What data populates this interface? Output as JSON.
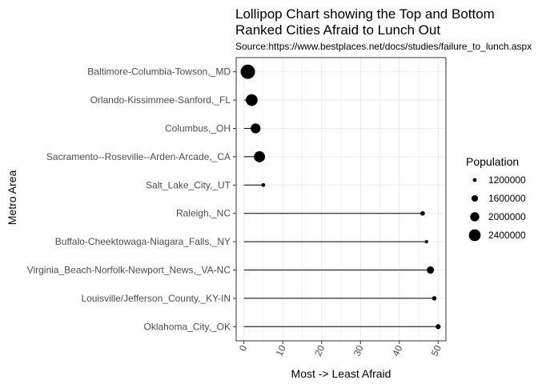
{
  "chart_data": {
    "type": "lollipop",
    "title_line1": "Lollipop Chart showing the Top and Bottom",
    "title_line2": "Ranked Cities Afraid to Lunch Out",
    "subtitle": "Source:https://www.bestplaces.net/docs/studies/failure_to_lunch.aspx",
    "xlabel": "Most -> Least Afraid",
    "ylabel": "Metro Area",
    "xlim": [
      -2,
      52
    ],
    "x_ticks": [
      0,
      10,
      20,
      30,
      40,
      50
    ],
    "grid": true,
    "legend_position": "right",
    "legend": {
      "title": "Population",
      "entries": [
        {
          "label": "1200000",
          "value": 1200000
        },
        {
          "label": "1600000",
          "value": 1600000
        },
        {
          "label": "2000000",
          "value": 2000000
        },
        {
          "label": "2400000",
          "value": 2400000
        }
      ]
    },
    "categories": [
      "Baltimore-Columbia-Towson,_MD",
      "Orlando-Kissimmee-Sanford,_FL",
      "Columbus,_OH",
      "Sacramento--Roseville--Arden-Arcade,_CA",
      "Salt_Lake_City,_UT",
      "Raleigh,_NC",
      "Buffalo-Cheektowaga-Niagara_Falls,_NY",
      "Virginia_Beach-Norfolk-Newport_News,_VA-NC",
      "Louisville/Jefferson_County,_KY-IN",
      "Oklahoma_City,_OK"
    ],
    "values": [
      1,
      2,
      3,
      4,
      5,
      46,
      47,
      48,
      49,
      50
    ],
    "population": [
      2800000,
      2400000,
      2100000,
      2300000,
      1200000,
      1300000,
      1130000,
      1720000,
      1290000,
      1380000
    ]
  }
}
